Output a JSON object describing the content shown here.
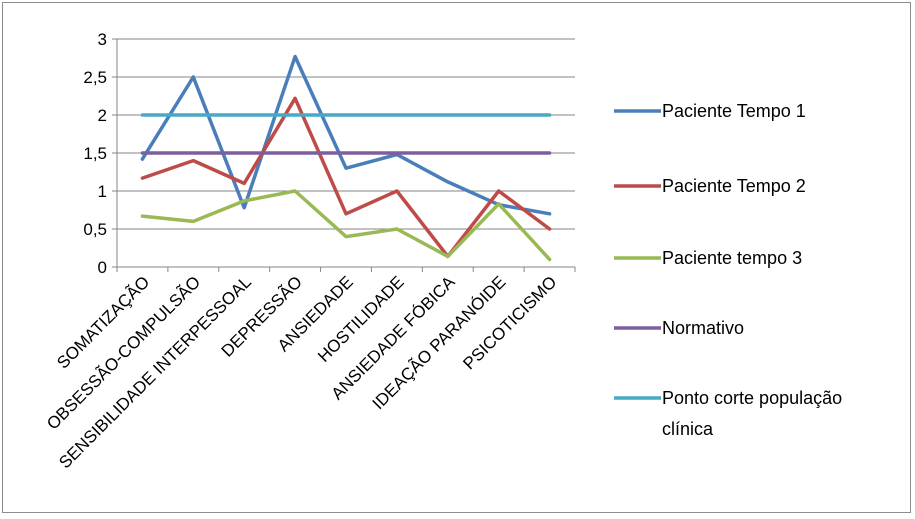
{
  "chart_data": {
    "type": "line",
    "categories": [
      "SOMATIZAÇÃO",
      "OBSESSÃO-COMPULSÃO",
      "SENSIBILIDADE INTERPESSOAL",
      "DEPRESSÃO",
      "ANSIEDADE",
      "HOSTILIDADE",
      "ANSIEDADE FÓBICA",
      "IDEAÇÃO PARANÓIDE",
      "PSICOTICISMO"
    ],
    "y_tick_labels": [
      "0",
      "0,5",
      "1",
      "1,5",
      "2",
      "2,5",
      "3"
    ],
    "ylim": [
      0,
      3
    ],
    "grid": true,
    "legend_position": "right",
    "series": [
      {
        "name": "Paciente Tempo 1",
        "color": "#4a7ebb",
        "values": [
          1.42,
          2.5,
          0.78,
          2.77,
          1.3,
          1.48,
          1.12,
          0.82,
          0.7
        ]
      },
      {
        "name": "Paciente Tempo 2",
        "color": "#be4b48",
        "values": [
          1.17,
          1.4,
          1.1,
          2.22,
          0.7,
          1.0,
          0.14,
          1.0,
          0.5
        ]
      },
      {
        "name": "Paciente tempo 3",
        "color": "#98b954",
        "values": [
          0.67,
          0.6,
          0.87,
          1.0,
          0.4,
          0.5,
          0.14,
          0.83,
          0.1
        ]
      },
      {
        "name": "Normativo",
        "color": "#7d5fa0",
        "values": [
          1.5,
          1.5,
          1.5,
          1.5,
          1.5,
          1.5,
          1.5,
          1.5,
          1.5
        ]
      },
      {
        "name": "Ponto corte população clínica",
        "color": "#46aac5",
        "values": [
          2.0,
          2.0,
          2.0,
          2.0,
          2.0,
          2.0,
          2.0,
          2.0,
          2.0
        ]
      }
    ]
  }
}
